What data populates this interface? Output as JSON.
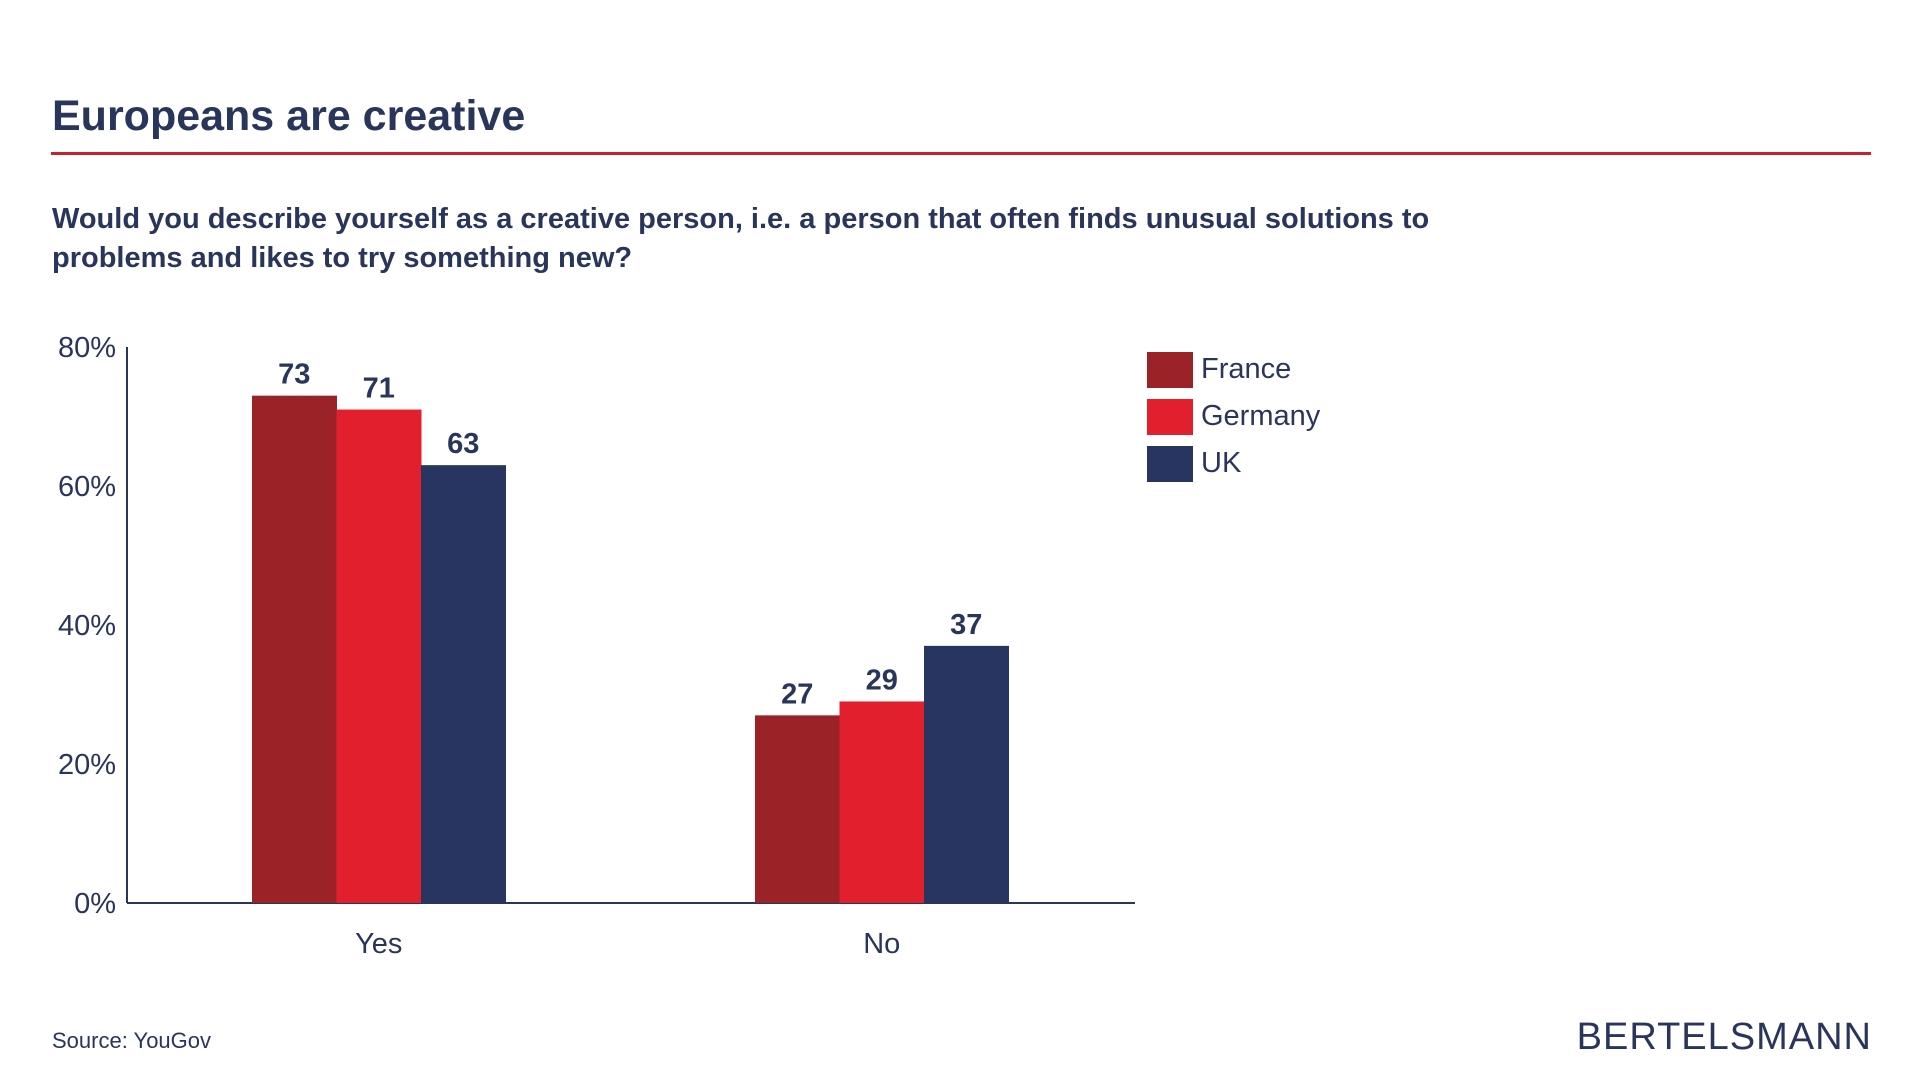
{
  "header": {
    "title": "Europeans are creative",
    "subtitle": "Would you describe yourself as a creative person, i.e. a person that often finds unusual solutions to problems and likes to try something new?"
  },
  "footer": {
    "source": "Source: YouGov",
    "logo_text": "BERTELSMANN"
  },
  "colors": {
    "accent_rule": "#c8202f",
    "text": "#2a355c"
  },
  "chart_data": {
    "type": "bar",
    "categories": [
      "Yes",
      "No"
    ],
    "series": [
      {
        "name": "France",
        "values": [
          73,
          27
        ],
        "color": "#9b2327"
      },
      {
        "name": "Germany",
        "values": [
          71,
          29
        ],
        "color": "#e21f2d"
      },
      {
        "name": "UK",
        "values": [
          63,
          37
        ],
        "color": "#283561"
      }
    ],
    "ylim": [
      0,
      80
    ],
    "yticks": [
      0,
      20,
      40,
      60,
      80
    ],
    "ytick_labels": [
      "0%",
      "20%",
      "40%",
      "60%",
      "80%"
    ],
    "legend_position": "top-right",
    "grid": false
  }
}
